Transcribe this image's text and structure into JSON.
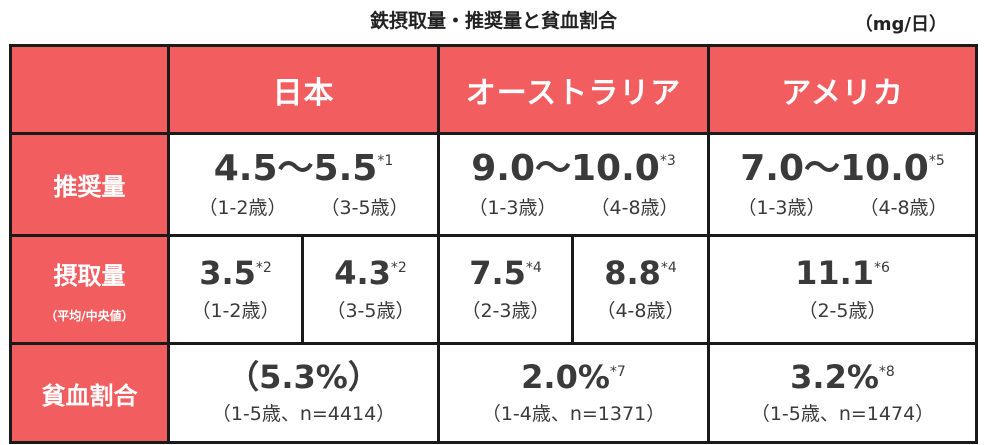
{
  "title": "鉄摂取量・推奨量と貧血割合",
  "unit": "（mg/日）",
  "headers": [
    "日本",
    "オーストラリア",
    "アメリカ"
  ],
  "rows": {
    "recommended": {
      "label": "推奨量",
      "japan": {
        "value": "4.5〜5.5",
        "note": "*1",
        "ages": [
          "（1-2歳）",
          "（3-5歳）"
        ]
      },
      "australia": {
        "value": "9.0〜10.0",
        "note": "*3",
        "ages": [
          "（1-3歳）",
          "（4-8歳）"
        ]
      },
      "usa": {
        "value": "7.0〜10.0",
        "note": "*5",
        "ages": [
          "（1-3歳）",
          "（4-8歳）"
        ]
      }
    },
    "intake": {
      "label": "摂取量",
      "sublabel": "（平均/中央値）",
      "japan": [
        {
          "value": "3.5",
          "note": "*2",
          "age": "（1-2歳）"
        },
        {
          "value": "4.3",
          "note": "*2",
          "age": "（3-5歳）"
        }
      ],
      "australia": [
        {
          "value": "7.5",
          "note": "*4",
          "age": "（2-3歳）"
        },
        {
          "value": "8.8",
          "note": "*4",
          "age": "（4-8歳）"
        }
      ],
      "usa": {
        "value": "11.1",
        "note": "*6",
        "age": "（2-5歳）"
      }
    },
    "anemia": {
      "label": "貧血割合",
      "japan": {
        "value": "（5.3%）",
        "note": "",
        "detail": "（1-5歳、n=4414）"
      },
      "australia": {
        "value": "2.0%",
        "note": "*7",
        "detail": "（1-4歳、n=1371）"
      },
      "usa": {
        "value": "3.2%",
        "note": "*8",
        "detail": "（1-5歳、n=1474）"
      }
    }
  },
  "colors": {
    "header_bg": "#f25d5f",
    "header_text": "#ffffff",
    "border": "#1a1a1a",
    "value_text": "#3a3a3a"
  }
}
